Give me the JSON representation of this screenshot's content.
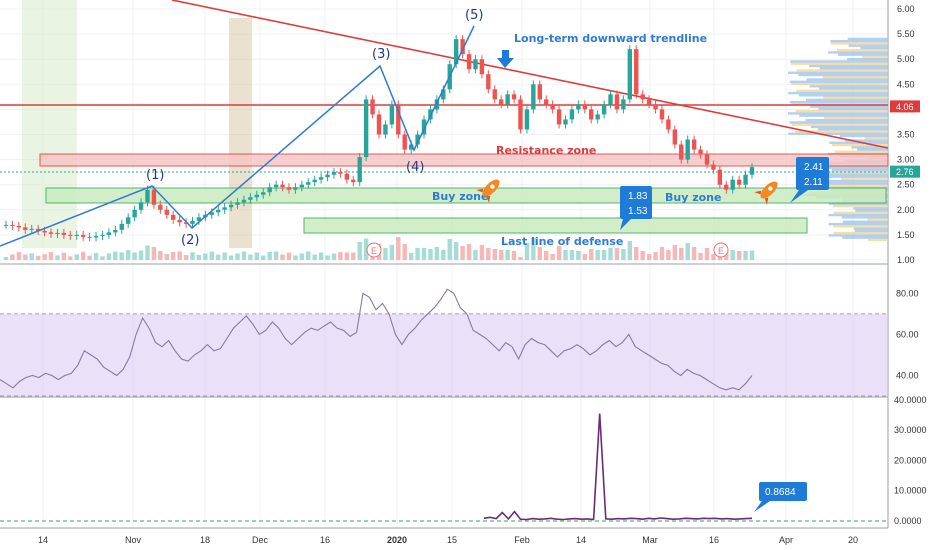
{
  "chart_data": [
    {
      "type": "candlestick",
      "panel": "price",
      "x_ticks": [
        "14",
        "Nov",
        "18",
        "Dec",
        "16",
        "2020",
        "15",
        "Feb",
        "14",
        "Mar",
        "16",
        "Apr",
        "20"
      ],
      "y_ticks": [
        "6.00",
        "5.50",
        "5.00",
        "4.50",
        "4.00",
        "3.50",
        "3.00",
        "2.50",
        "2.00",
        "1.50",
        "1.00"
      ],
      "ylim": [
        1.0,
        6.0
      ],
      "price_labels": [
        {
          "value": 4.06,
          "text": "4.06",
          "color": "#e03b3b"
        },
        {
          "value": 2.76,
          "text": "2.76",
          "color": "#26a69a"
        }
      ],
      "closes": [
        1.7,
        1.68,
        1.65,
        1.6,
        1.62,
        1.58,
        1.55,
        1.52,
        1.54,
        1.5,
        1.48,
        1.5,
        1.46,
        1.45,
        1.48,
        1.5,
        1.55,
        1.6,
        1.72,
        1.85,
        2.0,
        2.15,
        2.4,
        2.1,
        2.0,
        1.9,
        1.8,
        1.75,
        1.72,
        1.78,
        1.85,
        1.9,
        1.95,
        2.0,
        2.05,
        2.1,
        2.15,
        2.2,
        2.25,
        2.3,
        2.35,
        2.45,
        2.5,
        2.45,
        2.4,
        2.45,
        2.5,
        2.55,
        2.6,
        2.65,
        2.7,
        2.75,
        2.72,
        2.6,
        2.55,
        3.05,
        4.2,
        3.9,
        3.5,
        3.7,
        4.1,
        3.5,
        3.2,
        3.3,
        3.5,
        3.8,
        4.0,
        4.2,
        4.4,
        4.9,
        5.4,
        5.1,
        4.8,
        5.0,
        4.7,
        4.4,
        4.2,
        4.1,
        4.3,
        4.2,
        3.6,
        4.0,
        4.5,
        4.2,
        4.1,
        4.0,
        3.7,
        3.8,
        4.0,
        4.1,
        4.0,
        3.8,
        3.9,
        4.1,
        4.3,
        4.0,
        4.2,
        5.2,
        4.3,
        4.2,
        4.1,
        4.0,
        3.8,
        3.6,
        3.3,
        3.0,
        3.4,
        3.2,
        3.1,
        2.9,
        2.8,
        2.5,
        2.4,
        2.6,
        2.5,
        2.7,
        2.85
      ],
      "annotations": {
        "trendline_label": "Long-term downward trendline",
        "resistance_label": "Resistance zone",
        "buy_zone_label_1": "Buy zone",
        "buy_zone_label_2": "Buy zone",
        "defense_label": "Last line of defense",
        "callout_1_top": "1.83",
        "callout_1_bottom": "1.53",
        "callout_2_top": "2.41",
        "callout_2_bottom": "2.11",
        "wave_labels": [
          "(1)",
          "(2)",
          "(3)",
          "(4)",
          "(5)"
        ],
        "earnings_marker": "E"
      }
    },
    {
      "type": "line",
      "panel": "oscillator",
      "y_ticks": [
        "80.00",
        "60.00",
        "40.00"
      ],
      "ylim": [
        30,
        85
      ],
      "band": [
        30,
        70
      ],
      "values": [
        38,
        36,
        34,
        37,
        39,
        40,
        39,
        41,
        40,
        38,
        40,
        41,
        45,
        52,
        50,
        48,
        44,
        42,
        40,
        43,
        49,
        60,
        68,
        63,
        56,
        54,
        57,
        52,
        48,
        47,
        50,
        52,
        55,
        52,
        53,
        58,
        63,
        66,
        69,
        65,
        60,
        62,
        66,
        63,
        58,
        55,
        58,
        61,
        63,
        62,
        64,
        66,
        63,
        62,
        59,
        61,
        80,
        78,
        72,
        75,
        70,
        60,
        55,
        60,
        63,
        67,
        70,
        73,
        77,
        82,
        80,
        73,
        70,
        62,
        60,
        58,
        55,
        52,
        56,
        54,
        48,
        55,
        58,
        56,
        55,
        52,
        49,
        52,
        53,
        55,
        53,
        50,
        52,
        55,
        57,
        54,
        56,
        60,
        54,
        52,
        50,
        48,
        46,
        45,
        42,
        40,
        43,
        41,
        40,
        38,
        36,
        34,
        33,
        34,
        33,
        36,
        40
      ]
    },
    {
      "type": "line",
      "panel": "volume-ratio",
      "y_ticks": [
        "40.0000",
        "30.0000",
        "20.0000",
        "10.0000",
        "0.0000"
      ],
      "ylim": [
        -1,
        40
      ],
      "last_value_label": "0.8684",
      "values": [
        0.9,
        1.2,
        0.8,
        2.8,
        0.7,
        3.1,
        0.6,
        0.5,
        0.8,
        0.6,
        0.7,
        0.9,
        0.6,
        0.5,
        0.7,
        0.8,
        0.6,
        0.7,
        0.5,
        35.5,
        0.7,
        0.6,
        0.8,
        0.7,
        0.9,
        0.8,
        0.6,
        0.9,
        0.7,
        1.0,
        0.8,
        0.6,
        0.7,
        0.9,
        0.8,
        0.7,
        0.9,
        0.8,
        0.9,
        0.7,
        0.8,
        0.6,
        0.7,
        0.8,
        0.8684
      ]
    }
  ]
}
